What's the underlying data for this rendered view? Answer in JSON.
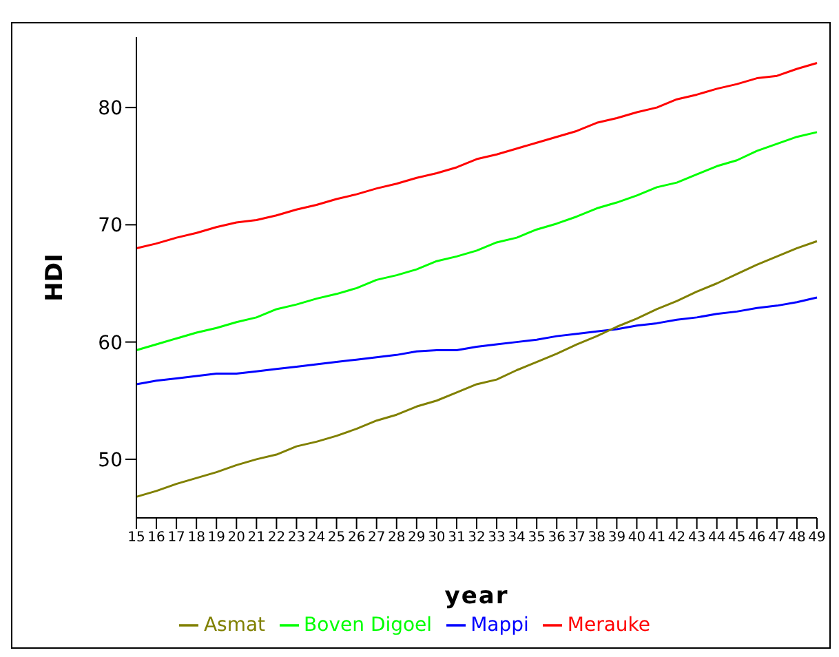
{
  "chart_data": {
    "type": "line",
    "xlabel": "year",
    "ylabel": "HDI",
    "categories": [
      "15",
      "16",
      "17",
      "18",
      "19",
      "20",
      "21",
      "22",
      "23",
      "24",
      "25",
      "26",
      "27",
      "28",
      "29",
      "30",
      "31",
      "32",
      "33",
      "34",
      "35",
      "36",
      "37",
      "38",
      "39",
      "40",
      "41",
      "42",
      "43",
      "44",
      "45",
      "46",
      "47",
      "48",
      "49"
    ],
    "series": [
      {
        "name": "Merauke",
        "color": "#ff0000",
        "values": [
          68.0,
          68.4,
          68.9,
          69.3,
          69.8,
          70.2,
          70.4,
          70.8,
          71.3,
          71.7,
          72.2,
          72.6,
          73.1,
          73.5,
          74.0,
          74.4,
          74.9,
          75.6,
          76.0,
          76.5,
          77.0,
          77.5,
          78.0,
          78.7,
          79.1,
          79.6,
          80.0,
          80.7,
          81.1,
          81.6,
          82.0,
          82.5,
          82.7,
          83.3,
          83.8
        ]
      },
      {
        "name": "Boven Digoel",
        "color": "#00ff00",
        "values": [
          59.3,
          59.8,
          60.3,
          60.8,
          61.2,
          61.7,
          62.1,
          62.8,
          63.2,
          63.7,
          64.1,
          64.6,
          65.3,
          65.7,
          66.2,
          66.9,
          67.3,
          67.8,
          68.5,
          68.9,
          69.6,
          70.1,
          70.7,
          71.4,
          71.9,
          72.5,
          73.2,
          73.6,
          74.3,
          75.0,
          75.5,
          76.3,
          76.9,
          77.5,
          77.9
        ]
      },
      {
        "name": "Mappi",
        "color": "#0000ff",
        "values": [
          56.4,
          56.7,
          56.9,
          57.1,
          57.3,
          57.3,
          57.5,
          57.7,
          57.9,
          58.1,
          58.3,
          58.5,
          58.7,
          58.9,
          59.2,
          59.3,
          59.3,
          59.6,
          59.8,
          60.0,
          60.2,
          60.5,
          60.7,
          60.9,
          61.1,
          61.4,
          61.6,
          61.9,
          62.1,
          62.4,
          62.6,
          62.9,
          63.1,
          63.4,
          63.8
        ]
      },
      {
        "name": "Asmat",
        "color": "#808000",
        "values": [
          46.8,
          47.3,
          47.9,
          48.4,
          48.9,
          49.5,
          50.0,
          50.4,
          51.1,
          51.5,
          52.0,
          52.6,
          53.3,
          53.8,
          54.5,
          55.0,
          55.7,
          56.4,
          56.8,
          57.6,
          58.3,
          59.0,
          59.8,
          60.5,
          61.3,
          62.0,
          62.8,
          63.5,
          64.3,
          65.0,
          65.8,
          66.6,
          67.3,
          68.0,
          68.6
        ]
      }
    ],
    "ylim": [
      45,
      86
    ],
    "yticks": [
      50,
      60,
      70,
      80
    ],
    "grid": false,
    "legend": "bottom",
    "marker": "none",
    "line_style": "solid"
  }
}
